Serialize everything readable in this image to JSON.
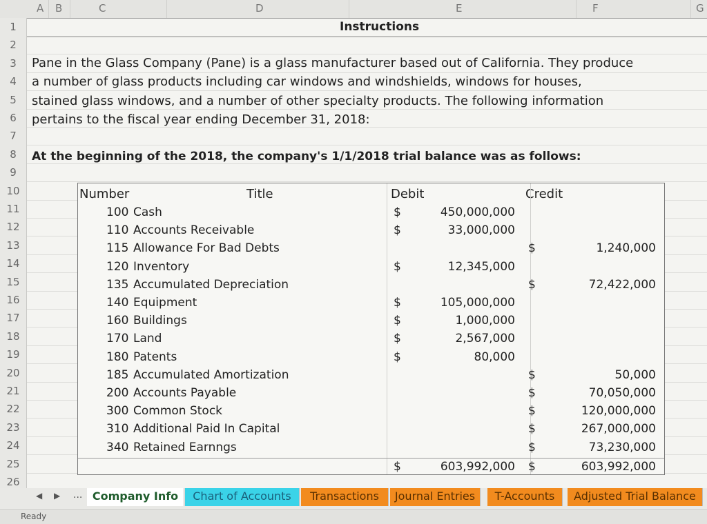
{
  "columns": [
    "A",
    "B",
    "C",
    "D",
    "E",
    "F",
    "G"
  ],
  "rows": [
    "1",
    "2",
    "3",
    "4",
    "5",
    "6",
    "7",
    "8",
    "9",
    "10",
    "11",
    "12",
    "13",
    "14",
    "15",
    "16",
    "17",
    "18",
    "19",
    "20",
    "21",
    "22",
    "23",
    "24",
    "25",
    "26"
  ],
  "sheet_title": "Instructions",
  "paragraph": [
    "Pane in the Glass Company (Pane) is a glass manufacturer based out of California.  They produce",
    "a number of glass products including car windows and windshields, windows for houses,",
    "stained glass windows, and a number of other specialty products.  The following information",
    "pertains to the fiscal year ending December 31, 2018:"
  ],
  "intro": "At the beginning of the 2018, the company's 1/1/2018 trial balance was as follows:",
  "table": {
    "headers": {
      "number": "Number",
      "title": "Title",
      "debit": "Debit",
      "credit": "Credit"
    },
    "rows": [
      {
        "num": "100",
        "title": "Cash",
        "ds": "$",
        "debit": "450,000,000",
        "cs": "",
        "credit": ""
      },
      {
        "num": "110",
        "title": "Accounts Receivable",
        "ds": "$",
        "debit": "33,000,000",
        "cs": "",
        "credit": ""
      },
      {
        "num": "115",
        "title": "Allowance For Bad Debts",
        "ds": "",
        "debit": "",
        "cs": "$",
        "credit": "1,240,000"
      },
      {
        "num": "120",
        "title": "Inventory",
        "ds": "$",
        "debit": "12,345,000",
        "cs": "",
        "credit": ""
      },
      {
        "num": "135",
        "title": "Accumulated Depreciation",
        "ds": "",
        "debit": "",
        "cs": "$",
        "credit": "72,422,000"
      },
      {
        "num": "140",
        "title": "Equipment",
        "ds": "$",
        "debit": "105,000,000",
        "cs": "",
        "credit": ""
      },
      {
        "num": "160",
        "title": "Buildings",
        "ds": "$",
        "debit": "1,000,000",
        "cs": "",
        "credit": ""
      },
      {
        "num": "170",
        "title": "Land",
        "ds": "$",
        "debit": "2,567,000",
        "cs": "",
        "credit": ""
      },
      {
        "num": "180",
        "title": "Patents",
        "ds": "$",
        "debit": "80,000",
        "cs": "",
        "credit": ""
      },
      {
        "num": "185",
        "title": "Accumulated Amortization",
        "ds": "",
        "debit": "",
        "cs": "$",
        "credit": "50,000"
      },
      {
        "num": "200",
        "title": "Accounts Payable",
        "ds": "",
        "debit": "",
        "cs": "$",
        "credit": "70,050,000"
      },
      {
        "num": "300",
        "title": "Common Stock",
        "ds": "",
        "debit": "",
        "cs": "$",
        "credit": "120,000,000"
      },
      {
        "num": "310",
        "title": "Additional Paid In Capital",
        "ds": "",
        "debit": "",
        "cs": "$",
        "credit": "267,000,000"
      },
      {
        "num": "340",
        "title": "Retained Earnngs",
        "ds": "",
        "debit": "",
        "cs": "$",
        "credit": "73,230,000"
      }
    ],
    "total": {
      "ds": "$",
      "debit": "603,992,000",
      "cs": "$",
      "credit": "603,992,000"
    }
  },
  "tabs": [
    {
      "label": "Company Info",
      "bg": "#ffffff",
      "color": "#1f5c2c"
    },
    {
      "label": "Chart of Accounts",
      "bg": "#3ad3e8",
      "color": "#1a5f7a"
    },
    {
      "label": "Transactions",
      "bg": "#f28b1e",
      "color": "#5a3000"
    },
    {
      "label": "Journal Entries",
      "bg": "#f28b1e",
      "color": "#5a3000"
    },
    {
      "label": "T-Accounts",
      "bg": "#f28b1e",
      "color": "#5a3000"
    },
    {
      "label": "Adjusted Trial Balance",
      "bg": "#f28b1e",
      "color": "#5a3000"
    }
  ],
  "nav": {
    "prev": "◀",
    "next": "▶",
    "more": "..."
  },
  "status": "Ready"
}
